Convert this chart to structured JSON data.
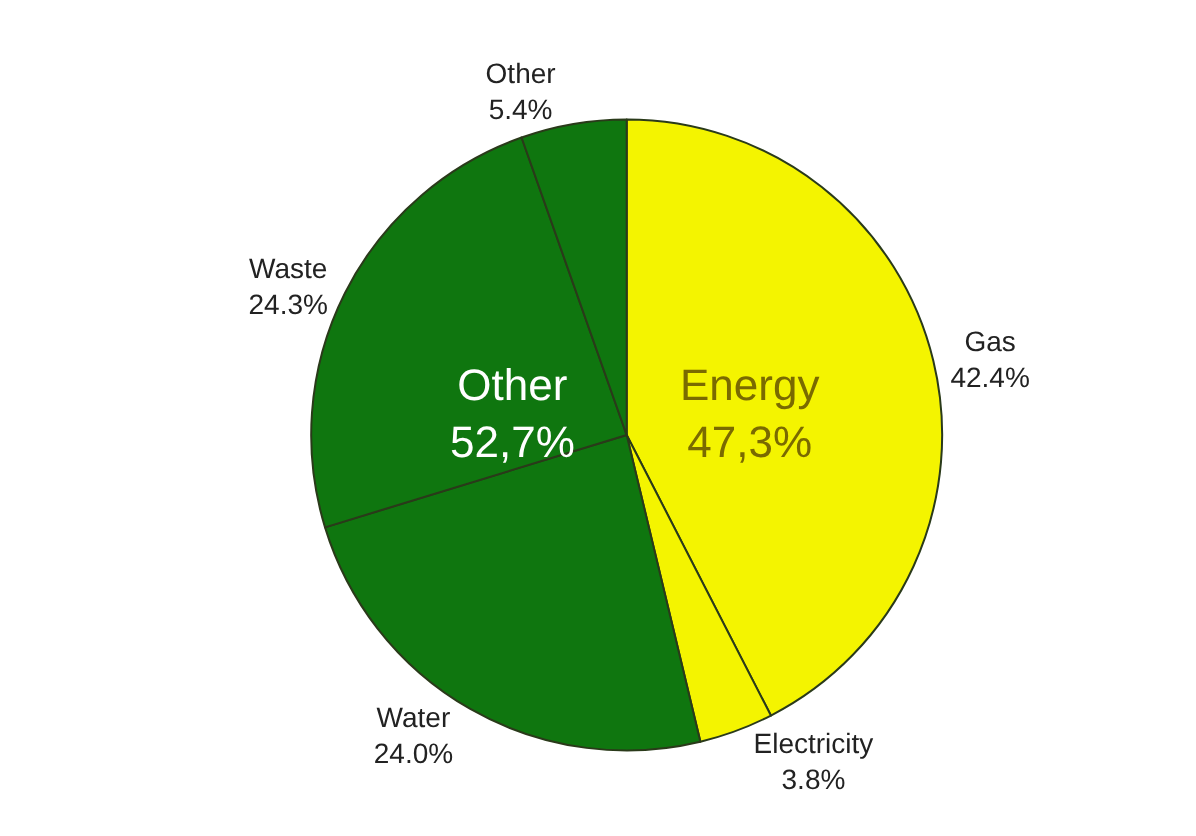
{
  "chart_data": {
    "type": "pie",
    "categories": [
      "Gas",
      "Electricity",
      "Water",
      "Waste",
      "Other"
    ],
    "values": [
      42.4,
      3.8,
      24.0,
      24.3,
      5.4
    ],
    "colors": [
      "#f4f400",
      "#f4f400",
      "#0f760f",
      "#0f760f",
      "#0f760f"
    ],
    "value_labels": [
      "42.4%",
      "3.8%",
      "24.0%",
      "24.3%",
      "5.4%"
    ],
    "legend": false,
    "annotations": [
      "Energy\n47,3%",
      "Other\n52,7%"
    ]
  }
}
